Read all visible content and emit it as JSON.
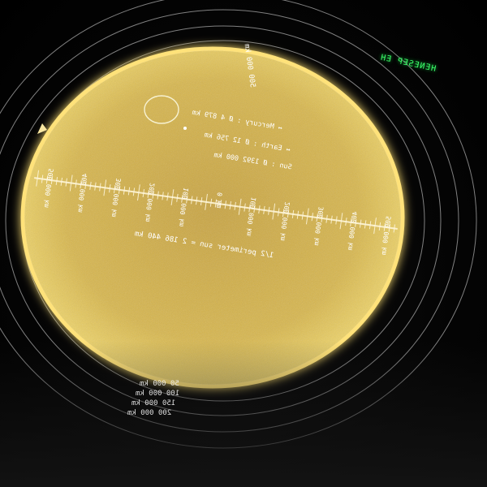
{
  "corner_label": "HENESEP EH",
  "disk_labels": {
    "vertical_scale": "500 000 km",
    "mercury": "↔ Mercury : Ø 4 879 km",
    "earth": "↔ Earth : Ø 12 756 km",
    "sun": "Sun : Ø 1392 000 km",
    "radius_note": "1/2 perimeter sun = 2 186 440 km"
  },
  "ticks": [
    "500 000 km",
    "400 000 km",
    "300 000 km",
    "200 000 km",
    "100 000 km",
    "0 km",
    "100 000 km",
    "200 000 km",
    "300 000 km",
    "400 000 km",
    "500 000 km"
  ],
  "ring_legend": [
    "50 000 km",
    "100 000 km",
    "150 000 km",
    "200 000 km"
  ],
  "colors": {
    "disk_center": "#e4c24a",
    "disk_edge": "#f3d460",
    "glow": "#ffdf6e",
    "rings": "#e8e8e8",
    "label_green": "#3cff6a"
  }
}
